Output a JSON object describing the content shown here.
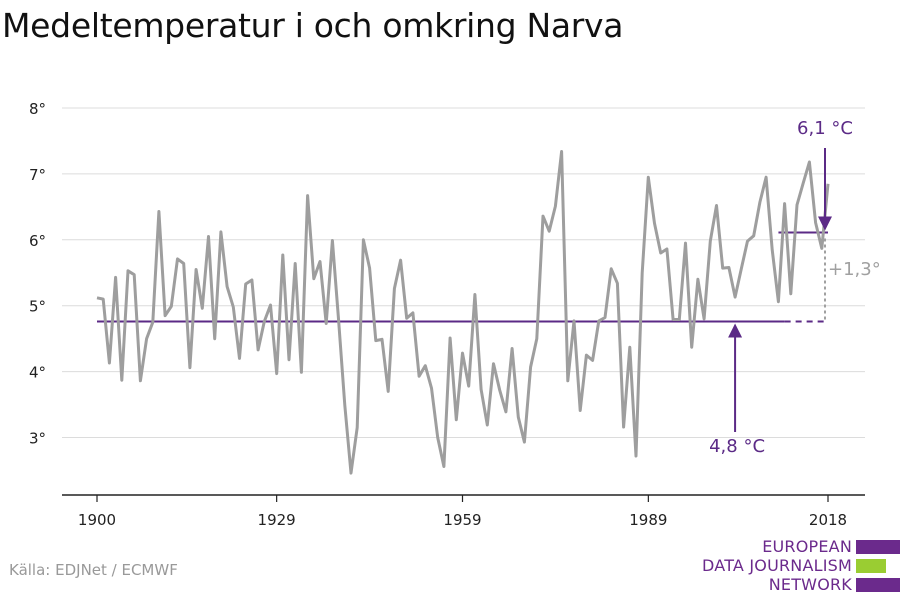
{
  "title": "Medeltemperatur i och omkring Narva",
  "source": "Källa: EDJNet / ECMWF",
  "logo": {
    "lines": [
      "EUROPEAN",
      "DATA JOURNALISM",
      "NETWORK"
    ],
    "colors": [
      "#6b2a8c",
      "#9acd32",
      "#6b2a8c"
    ]
  },
  "chart_data": {
    "type": "line",
    "title": "Medeltemperatur i och omkring Narva",
    "xlabel": "",
    "ylabel": "",
    "xlim": [
      1900,
      2018
    ],
    "ylim": [
      2.2,
      8.3
    ],
    "x_ticks": [
      1900,
      1929,
      1959,
      1989,
      2018
    ],
    "y_ticks": [
      3,
      4,
      5,
      6,
      7,
      8
    ],
    "y_tick_suffix": "°",
    "grid": true,
    "series": [
      {
        "name": "",
        "color": "#9e9e9e",
        "x": [
          1900,
          1901,
          1902,
          1903,
          1904,
          1905,
          1906,
          1907,
          1908,
          1909,
          1910,
          1911,
          1912,
          1913,
          1914,
          1915,
          1916,
          1917,
          1918,
          1919,
          1920,
          1921,
          1922,
          1923,
          1924,
          1925,
          1926,
          1927,
          1928,
          1929,
          1930,
          1931,
          1932,
          1933,
          1934,
          1935,
          1936,
          1937,
          1938,
          1939,
          1940,
          1941,
          1942,
          1943,
          1944,
          1945,
          1946,
          1947,
          1948,
          1949,
          1950,
          1951,
          1952,
          1953,
          1954,
          1955,
          1956,
          1957,
          1958,
          1959,
          1960,
          1961,
          1962,
          1963,
          1964,
          1965,
          1966,
          1967,
          1968,
          1969,
          1970,
          1971,
          1972,
          1973,
          1974,
          1975,
          1976,
          1977,
          1978,
          1979,
          1980,
          1981,
          1982,
          1983,
          1984,
          1985,
          1986,
          1987,
          1988,
          1989,
          1990,
          1991,
          1992,
          1993,
          1994,
          1995,
          1996,
          1997,
          1998,
          1999,
          2000,
          2001,
          2002,
          2003,
          2004,
          2005,
          2006,
          2007,
          2008,
          2009,
          2010,
          2011,
          2012,
          2013,
          2014,
          2015,
          2016,
          2017,
          2018
        ],
        "values": [
          5.12,
          5.1,
          4.13,
          5.43,
          3.87,
          5.53,
          5.47,
          3.86,
          4.5,
          4.75,
          6.43,
          4.85,
          4.99,
          5.71,
          5.64,
          4.06,
          5.55,
          4.96,
          6.05,
          4.5,
          6.12,
          5.29,
          4.98,
          4.2,
          5.33,
          5.39,
          4.33,
          4.76,
          5.01,
          3.97,
          5.77,
          4.18,
          5.64,
          3.99,
          6.67,
          5.41,
          5.67,
          4.73,
          5.99,
          4.78,
          3.49,
          2.46,
          3.15,
          6.0,
          5.57,
          4.47,
          4.49,
          3.7,
          5.26,
          5.69,
          4.81,
          4.89,
          3.93,
          4.09,
          3.75,
          3.0,
          2.56,
          4.51,
          3.27,
          4.28,
          3.78,
          5.17,
          3.73,
          3.19,
          4.12,
          3.72,
          3.39,
          4.35,
          3.31,
          2.93,
          4.07,
          4.5,
          6.36,
          6.13,
          6.51,
          7.34,
          3.86,
          4.77,
          3.41,
          4.25,
          4.17,
          4.77,
          4.82,
          5.56,
          5.34,
          3.16,
          4.37,
          2.72,
          5.5,
          6.95,
          6.25,
          5.8,
          5.86,
          4.79,
          4.79,
          5.95,
          4.37,
          5.4,
          4.8,
          5.98,
          6.52,
          5.57,
          5.58,
          5.13,
          5.56,
          5.98,
          6.06,
          6.57,
          6.95,
          5.85,
          5.06,
          6.55,
          5.18,
          6.53,
          6.86,
          7.18,
          6.26,
          5.87,
          6.85
        ]
      }
    ],
    "reference_lines": [
      {
        "label": "4,8 °C",
        "value": 4.76,
        "x_start": 1900,
        "x_end": 2011,
        "dashed_to": 2018,
        "color": "#5b2a86"
      },
      {
        "label": "6,1 °C",
        "value": 6.11,
        "x_start": 2010,
        "x_end": 2018,
        "color": "#5b2a86"
      }
    ],
    "difference_label": "+1,3°",
    "difference_color": "#a0a0a0"
  }
}
